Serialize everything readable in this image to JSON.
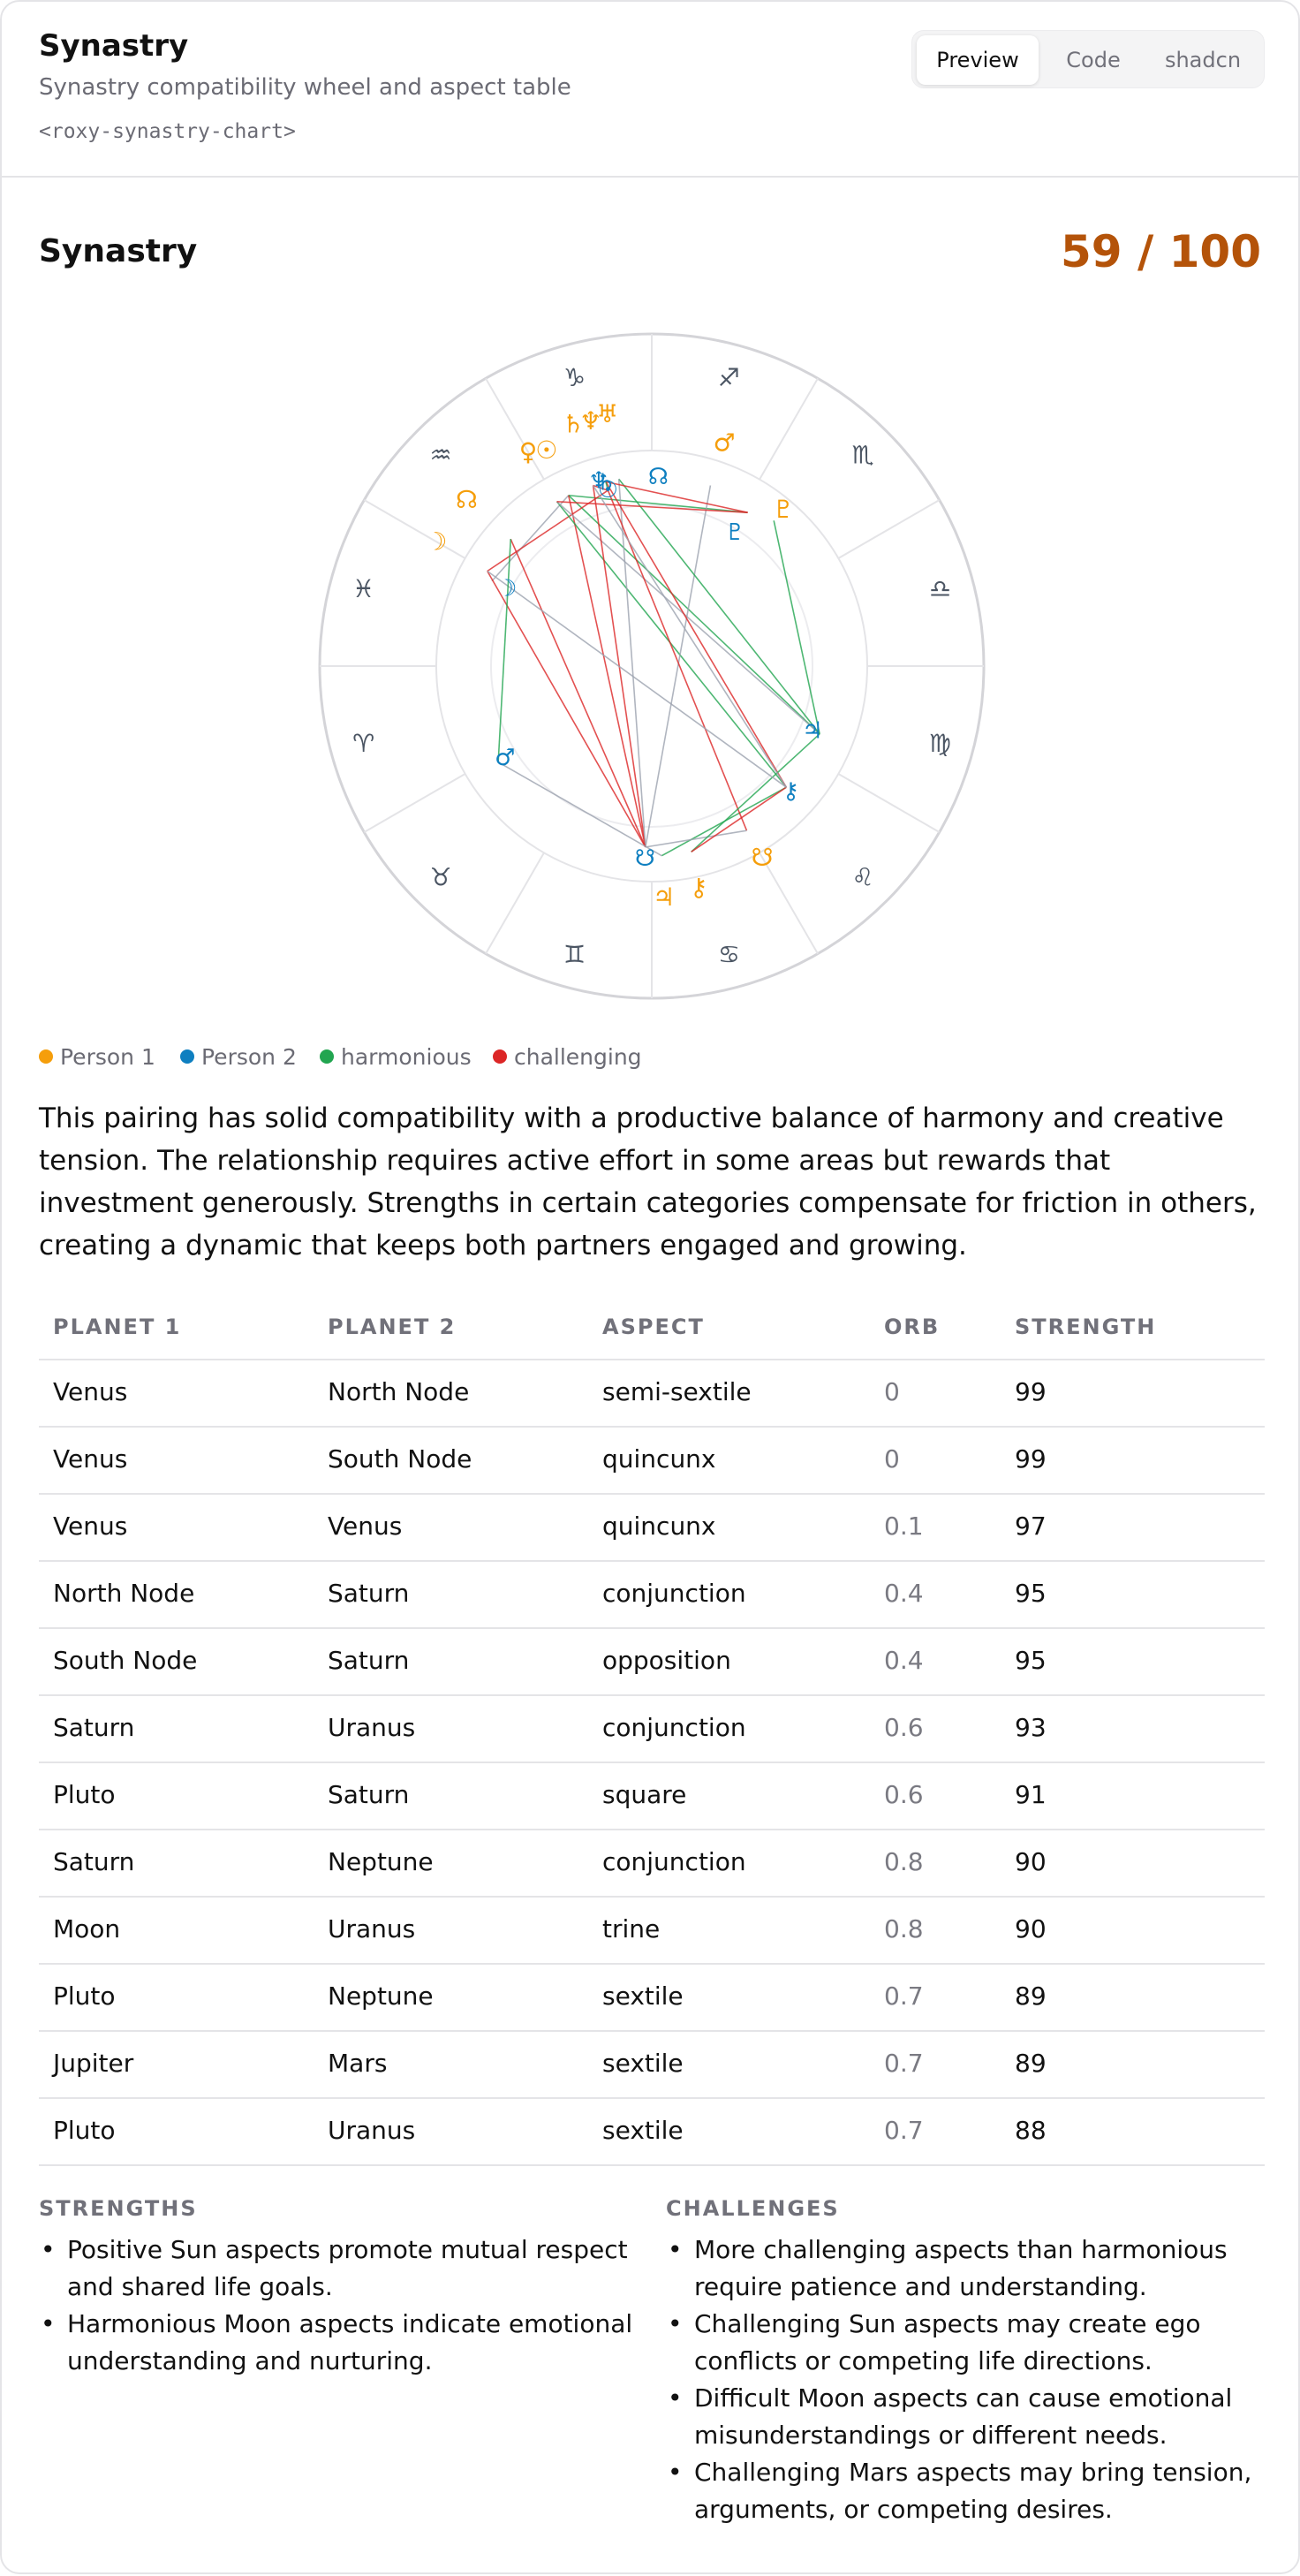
{
  "header": {
    "title": "Synastry",
    "subtitle": "Synastry compatibility wheel and aspect table",
    "tag": "<roxy-synastry-chart>",
    "tabs": [
      {
        "label": "Preview",
        "active": true
      },
      {
        "label": "Code",
        "active": false
      },
      {
        "label": "shadcn",
        "active": false
      }
    ]
  },
  "section": {
    "title": "Synastry",
    "score": "59 / 100"
  },
  "colors": {
    "person1": "#f59e0b",
    "person2": "#0e7fc0",
    "harmonious": "#22a550",
    "challenging": "#dc2626",
    "neutral": "#9ca3af",
    "score": "#b45309"
  },
  "wheel": {
    "signs": [
      "aries-icon",
      "taurus-icon",
      "gemini-icon",
      "cancer-icon",
      "leo-icon",
      "virgo-icon",
      "libra-icon",
      "scorpio-icon",
      "sagittarius-icon",
      "capricorn-icon",
      "aquarius-icon",
      "pisces-icon"
    ],
    "sign_glyphs": [
      "♈",
      "♉",
      "♊",
      "♋",
      "♌",
      "♍",
      "♎",
      "♏",
      "♐",
      "♑",
      "♒",
      "♓"
    ],
    "person1_planets": [
      {
        "name": "sun-icon",
        "glyph": "☉"
      },
      {
        "name": "moon-icon",
        "glyph": "☽"
      },
      {
        "name": "venus-icon",
        "glyph": "♀"
      },
      {
        "name": "mars-icon",
        "glyph": "♂"
      },
      {
        "name": "jupiter-icon",
        "glyph": "♃"
      },
      {
        "name": "saturn-icon",
        "glyph": "♄"
      },
      {
        "name": "uranus-icon",
        "glyph": "♅"
      },
      {
        "name": "neptune-icon",
        "glyph": "♆"
      },
      {
        "name": "pluto-icon",
        "glyph": "♇"
      },
      {
        "name": "north-node-icon",
        "glyph": "☊"
      },
      {
        "name": "south-node-icon",
        "glyph": "☋"
      },
      {
        "name": "chiron-icon",
        "glyph": "⚷"
      }
    ],
    "person2_planets": [
      {
        "name": "sun-icon",
        "glyph": "☉"
      },
      {
        "name": "moon-icon",
        "glyph": "☽"
      },
      {
        "name": "mars-icon",
        "glyph": "♂"
      },
      {
        "name": "jupiter-icon",
        "glyph": "♃"
      },
      {
        "name": "saturn-icon",
        "glyph": "♄"
      },
      {
        "name": "neptune-icon",
        "glyph": "♆"
      },
      {
        "name": "pluto-icon",
        "glyph": "♇"
      },
      {
        "name": "north-node-icon",
        "glyph": "☊"
      },
      {
        "name": "south-node-icon",
        "glyph": "☋"
      },
      {
        "name": "chiron-icon",
        "glyph": "⚷"
      }
    ]
  },
  "legend": [
    {
      "label": "Person 1",
      "color": "#f59e0b"
    },
    {
      "label": "Person 2",
      "color": "#0e7fc0"
    },
    {
      "label": "harmonious",
      "color": "#22a550"
    },
    {
      "label": "challenging",
      "color": "#dc2626"
    }
  ],
  "summary": "This pairing has solid compatibility with a productive balance of harmony and creative tension. The relationship requires active effort in some areas but rewards that investment generously. Strengths in certain categories compensate for friction in others, creating a dynamic that keeps both partners engaged and growing.",
  "table": {
    "headers": [
      "PLANET 1",
      "PLANET 2",
      "ASPECT",
      "ORB",
      "STRENGTH"
    ],
    "rows": [
      {
        "p1": "Venus",
        "p2": "North Node",
        "aspect": "semi-sextile",
        "orb": "0",
        "strength": "99"
      },
      {
        "p1": "Venus",
        "p2": "South Node",
        "aspect": "quincunx",
        "orb": "0",
        "strength": "99"
      },
      {
        "p1": "Venus",
        "p2": "Venus",
        "aspect": "quincunx",
        "orb": "0.1",
        "strength": "97"
      },
      {
        "p1": "North Node",
        "p2": "Saturn",
        "aspect": "conjunction",
        "orb": "0.4",
        "strength": "95"
      },
      {
        "p1": "South Node",
        "p2": "Saturn",
        "aspect": "opposition",
        "orb": "0.4",
        "strength": "95"
      },
      {
        "p1": "Saturn",
        "p2": "Uranus",
        "aspect": "conjunction",
        "orb": "0.6",
        "strength": "93"
      },
      {
        "p1": "Pluto",
        "p2": "Saturn",
        "aspect": "square",
        "orb": "0.6",
        "strength": "91"
      },
      {
        "p1": "Saturn",
        "p2": "Neptune",
        "aspect": "conjunction",
        "orb": "0.8",
        "strength": "90"
      },
      {
        "p1": "Moon",
        "p2": "Uranus",
        "aspect": "trine",
        "orb": "0.8",
        "strength": "90"
      },
      {
        "p1": "Pluto",
        "p2": "Neptune",
        "aspect": "sextile",
        "orb": "0.7",
        "strength": "89"
      },
      {
        "p1": "Jupiter",
        "p2": "Mars",
        "aspect": "sextile",
        "orb": "0.7",
        "strength": "89"
      },
      {
        "p1": "Pluto",
        "p2": "Uranus",
        "aspect": "sextile",
        "orb": "0.7",
        "strength": "88"
      }
    ]
  },
  "strengths": {
    "title": "STRENGTHS",
    "items": [
      "Positive Sun aspects promote mutual respect and shared life goals.",
      "Harmonious Moon aspects indicate emotional understanding and nurturing."
    ]
  },
  "challenges": {
    "title": "CHALLENGES",
    "items": [
      "More challenging aspects than harmonious require patience and understanding.",
      "Challenging Sun aspects may create ego conflicts or competing life directions.",
      "Difficult Moon aspects can cause emotional misunderstandings or different needs.",
      "Challenging Mars aspects may bring tension, arguments, or competing desires."
    ]
  }
}
